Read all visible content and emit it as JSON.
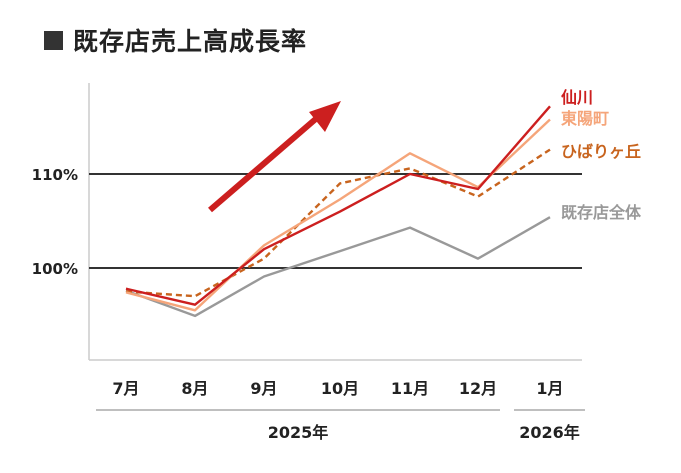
{
  "chart_data": {
    "type": "line",
    "title": "既存店売上高成長率",
    "categories": [
      "7月",
      "8月",
      "9月",
      "10月",
      "11月",
      "12月",
      "1月"
    ],
    "year_groups": [
      {
        "label": "2025年",
        "from": 0,
        "to": 5
      },
      {
        "label": "2026年",
        "from": 6,
        "to": 6
      }
    ],
    "y_ticks": [
      {
        "value": 100,
        "label": "100%"
      },
      {
        "value": 110,
        "label": "110%"
      }
    ],
    "ylim": [
      90.2,
      118.5
    ],
    "series": [
      {
        "name": "仙川",
        "color": "#cc1f1f",
        "style": "solid",
        "values": [
          97.8,
          96.1,
          102.0,
          106.0,
          110.0,
          108.4,
          117.2
        ]
      },
      {
        "name": "東陽町",
        "color": "#f5a57a",
        "style": "solid",
        "values": [
          97.4,
          95.5,
          102.4,
          107.3,
          112.2,
          108.6,
          115.8
        ]
      },
      {
        "name": "ひばりヶ丘",
        "color": "#c8641e",
        "style": "dashed",
        "values": [
          97.5,
          97.0,
          101.0,
          109.0,
          110.6,
          107.6,
          112.6
        ]
      },
      {
        "name": "既存店全体",
        "color": "#999999",
        "style": "solid",
        "values": [
          97.6,
          94.9,
          99.1,
          101.8,
          104.3,
          101.0,
          105.4
        ]
      }
    ],
    "annotation": {
      "type": "up-arrow",
      "color": "#cc1f1f"
    },
    "grid": false,
    "legend": "right-end-labels"
  }
}
